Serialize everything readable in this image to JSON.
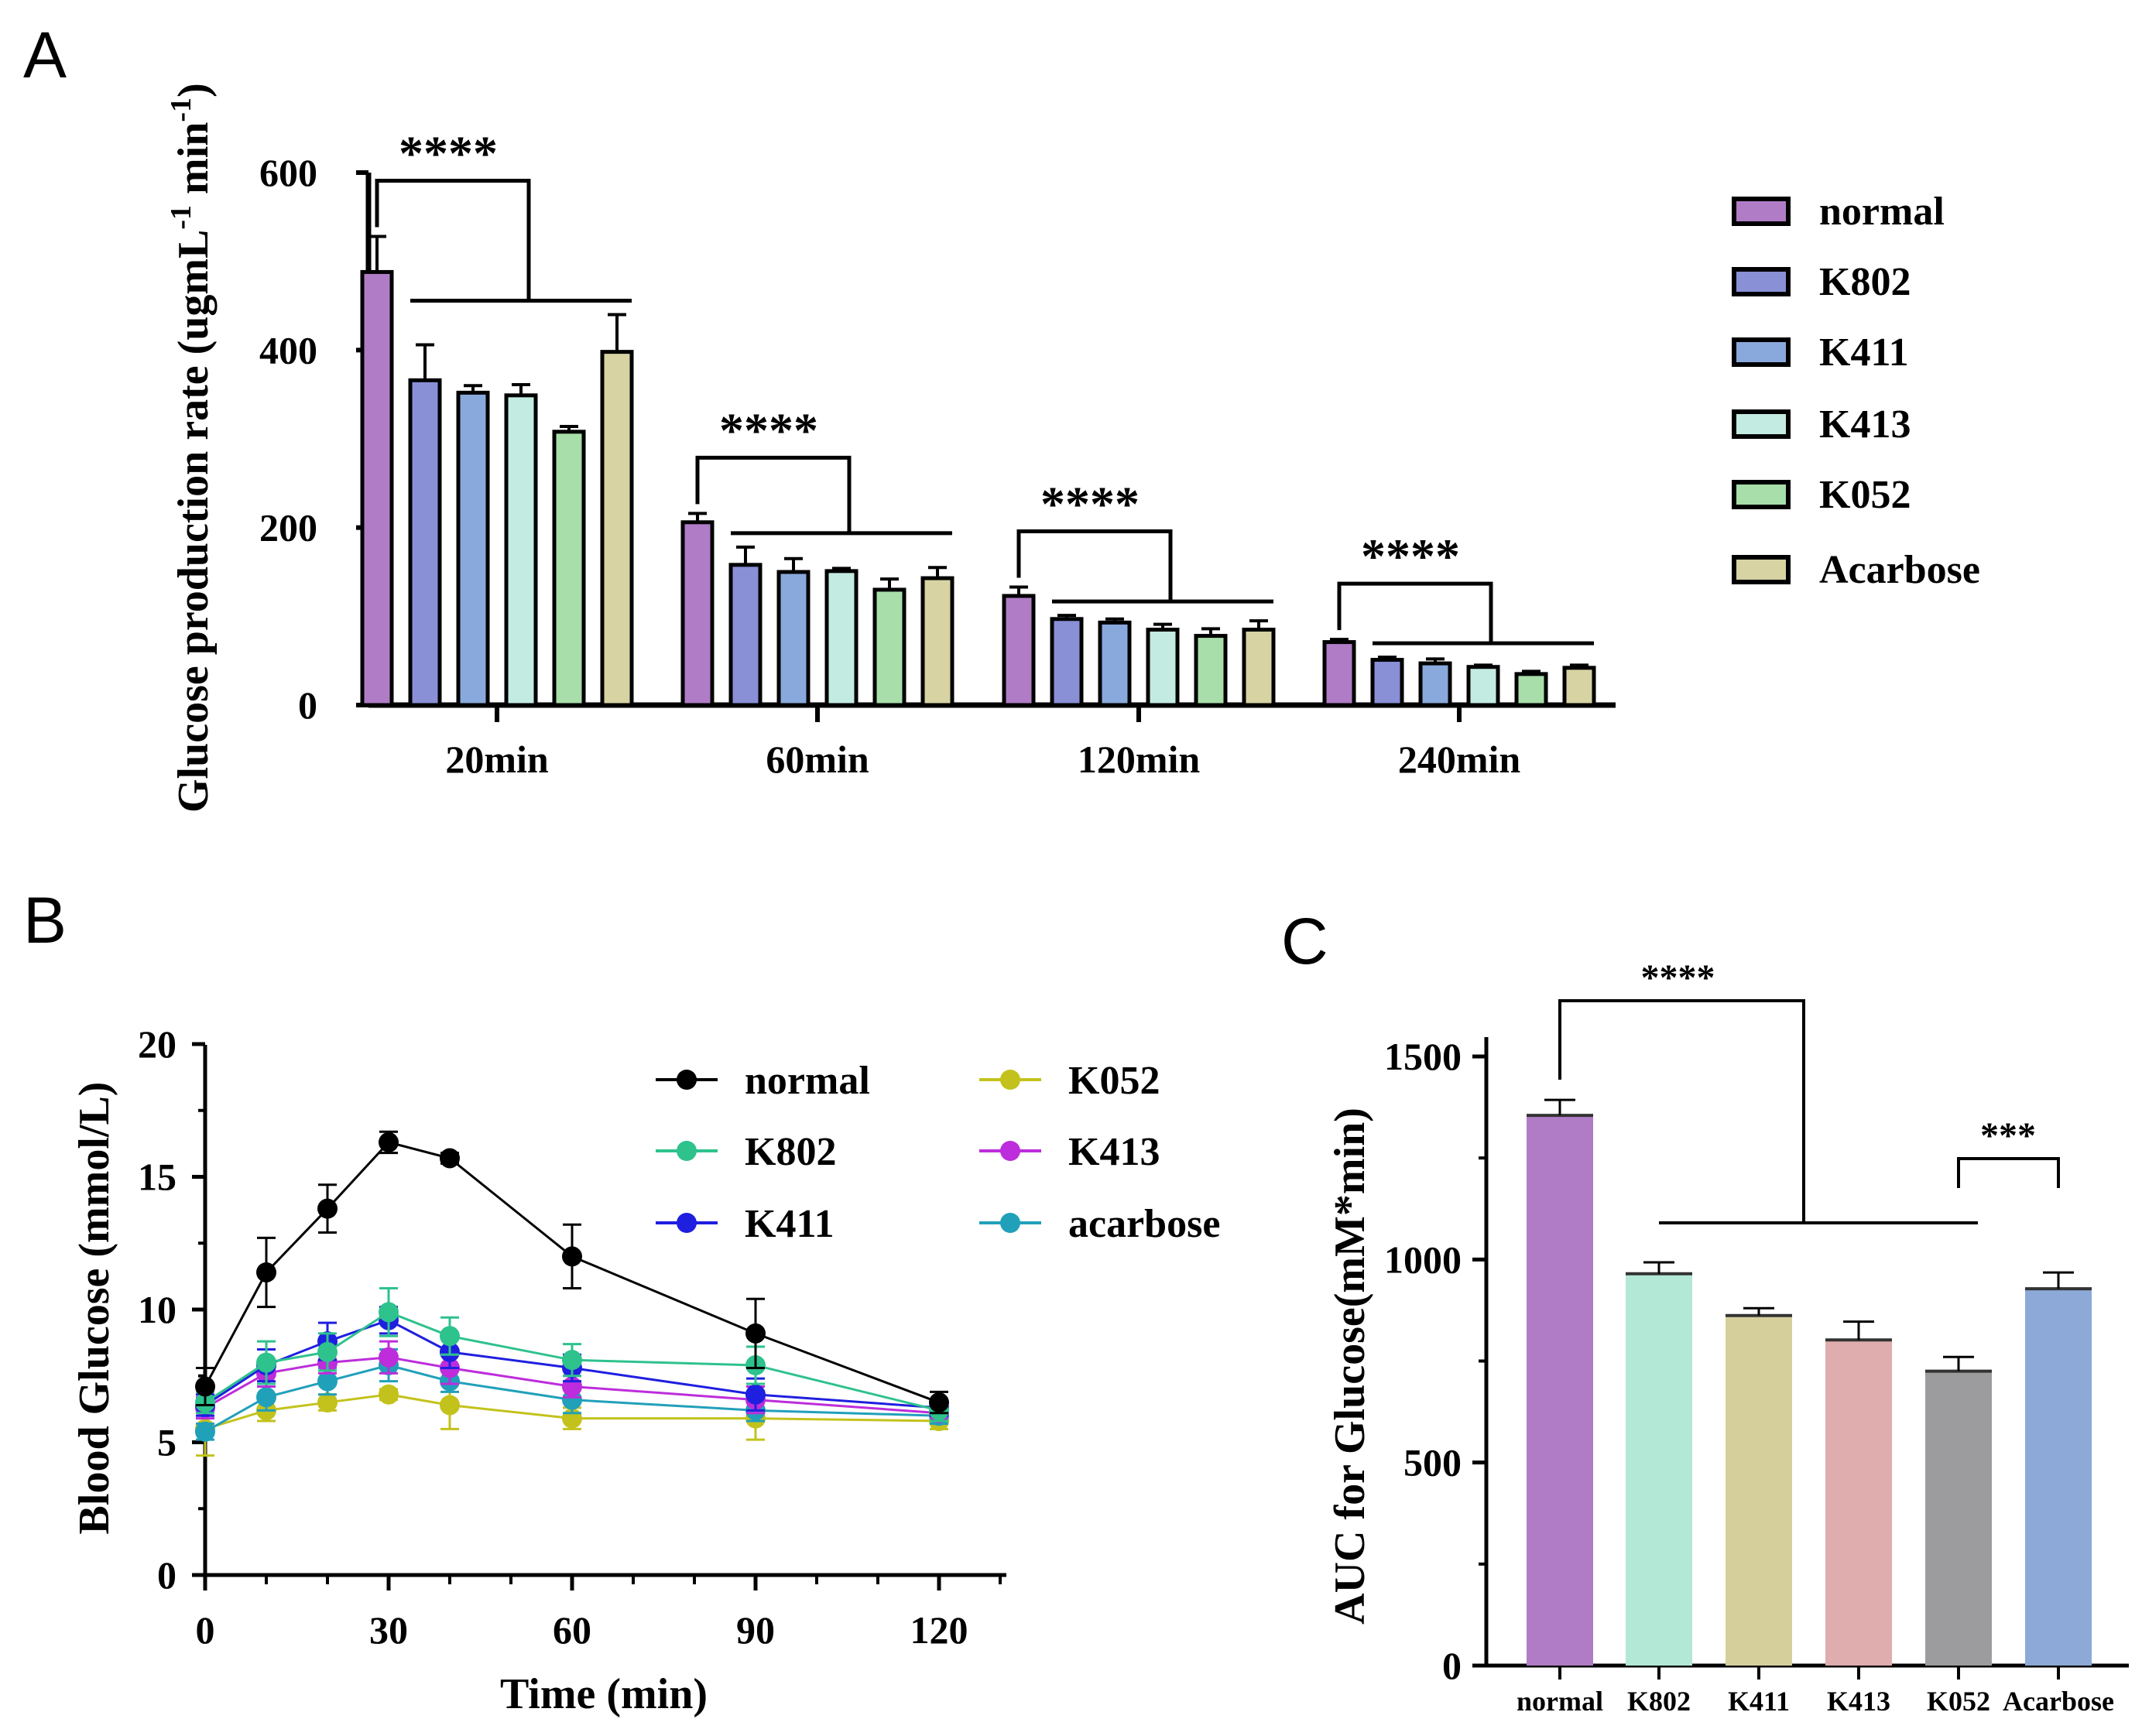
{
  "chart_data": [
    {
      "panel": "A",
      "type": "bar",
      "ylabel": "Glucose production rate (ugmL",
      "ylabel_sup1": "-1",
      "ylabel_mid": " min",
      "ylabel_sup2": "-1",
      "ylabel_end": ")",
      "ylim": [
        0,
        600
      ],
      "yticks": [
        "0",
        "200",
        "400",
        "600"
      ],
      "yticks_values": [
        0,
        200,
        400,
        600
      ],
      "categories": [
        "20min",
        "60min",
        "120min",
        "240min"
      ],
      "series": [
        {
          "name": "normal",
          "color": "#b07cc6",
          "values": [
            488,
            206,
            123,
            71
          ],
          "errors": [
            40,
            10,
            10,
            3
          ]
        },
        {
          "name": "K802",
          "color": "#8990d6",
          "values": [
            366,
            158,
            97,
            51
          ],
          "errors": [
            40,
            20,
            4,
            3
          ]
        },
        {
          "name": "K411",
          "color": "#89a9dc",
          "values": [
            352,
            150,
            93,
            47
          ],
          "errors": [
            8,
            15,
            4,
            5
          ]
        },
        {
          "name": "K413",
          "color": "#c3ebe2",
          "values": [
            349,
            151,
            85,
            43
          ],
          "errors": [
            12,
            3,
            6,
            2
          ]
        },
        {
          "name": "K052",
          "color": "#a7dea9",
          "values": [
            308,
            130,
            78,
            35
          ],
          "errors": [
            6,
            12,
            8,
            3
          ]
        },
        {
          "name": "Acarbose",
          "color": "#d7d3a3",
          "values": [
            398,
            143,
            85,
            42
          ],
          "errors": [
            42,
            12,
            10,
            3
          ]
        }
      ],
      "significance": [
        "****",
        "****",
        "****",
        "****"
      ],
      "legend_position": "right"
    },
    {
      "panel": "B",
      "type": "line",
      "xlabel": "Time (min)",
      "ylabel": "Blood Glucose (mmol/L)",
      "xlim": [
        0,
        130
      ],
      "ylim": [
        0,
        20
      ],
      "xticks": [
        "0",
        "30",
        "60",
        "90",
        "120"
      ],
      "xticks_values": [
        0,
        30,
        60,
        90,
        120
      ],
      "yticks": [
        "0",
        "5",
        "10",
        "15",
        "20"
      ],
      "yticks_values": [
        0,
        5,
        10,
        15,
        20
      ],
      "x": [
        0,
        10,
        20,
        30,
        40,
        60,
        90,
        120
      ],
      "series": [
        {
          "name": "normal",
          "color": "#000000",
          "values": [
            7.1,
            11.4,
            13.8,
            16.3,
            15.7,
            12.0,
            9.1,
            6.5
          ],
          "errors": [
            0.7,
            1.3,
            0.9,
            0.4,
            0.2,
            1.2,
            1.3,
            0.4
          ]
        },
        {
          "name": "K802",
          "color": "#2ec28d",
          "values": [
            6.5,
            8.0,
            8.4,
            9.9,
            9.0,
            8.1,
            7.9,
            6.2
          ],
          "errors": [
            0.4,
            0.8,
            0.7,
            0.9,
            0.7,
            0.6,
            0.7,
            0.4
          ]
        },
        {
          "name": "K411",
          "color": "#1f1fe0",
          "values": [
            6.4,
            7.9,
            8.8,
            9.6,
            8.4,
            7.8,
            6.8,
            6.3
          ],
          "errors": [
            0.4,
            0.6,
            0.7,
            0.5,
            0.6,
            0.5,
            0.6,
            0.3
          ]
        },
        {
          "name": "K052",
          "color": "#c3c21c",
          "values": [
            5.5,
            6.2,
            6.5,
            6.8,
            6.4,
            5.9,
            5.9,
            5.8
          ],
          "errors": [
            1.0,
            0.4,
            0.3,
            0.2,
            0.9,
            0.4,
            0.8,
            0.3
          ]
        },
        {
          "name": "K413",
          "color": "#bd2ddb",
          "values": [
            6.3,
            7.6,
            8.0,
            8.2,
            7.8,
            7.1,
            6.6,
            6.1
          ],
          "errors": [
            0.4,
            0.5,
            0.4,
            0.6,
            0.6,
            0.4,
            0.5,
            0.3
          ]
        },
        {
          "name": "acarbose",
          "color": "#21a0ba",
          "values": [
            5.4,
            6.7,
            7.3,
            7.9,
            7.3,
            6.6,
            6.2,
            6.0
          ],
          "errors": [
            0.3,
            0.5,
            0.5,
            0.6,
            0.4,
            0.5,
            0.4,
            0.3
          ]
        }
      ],
      "legend_position": "top-right"
    },
    {
      "panel": "C",
      "type": "bar",
      "ylabel": "AUC for Glucose(mM*min)",
      "ylim": [
        0,
        1500
      ],
      "yticks": [
        "0",
        "500",
        "1000",
        "1500"
      ],
      "yticks_values": [
        0,
        500,
        1000,
        1500
      ],
      "categories": [
        "normal",
        "K802",
        "K411",
        "K413",
        "K052",
        "Acarbose"
      ],
      "values": [
        1355,
        965,
        862,
        802,
        725,
        928
      ],
      "errors": [
        38,
        28,
        18,
        45,
        35,
        40
      ],
      "colors": [
        "#b07cc6",
        "#b3e8d6",
        "#d5d09b",
        "#dfadad",
        "#9c9c9e",
        "#8ca9d7"
      ],
      "significance": [
        "****",
        "***"
      ]
    }
  ],
  "panel_labels": [
    "A",
    "B",
    "C"
  ]
}
